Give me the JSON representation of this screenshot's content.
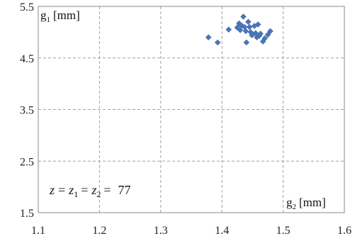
{
  "chart_data": {
    "type": "scatter",
    "xlim": [
      1.1,
      1.6
    ],
    "ylim": [
      1.5,
      5.5
    ],
    "x_ticks": [
      "1.1",
      "1.2",
      "1.3",
      "1.4",
      "1.5",
      "1.6"
    ],
    "y_ticks": [
      "1.5",
      "2.5",
      "3.5",
      "4.5",
      "5.5"
    ],
    "grid": true,
    "grid_style": "dashed",
    "marker": "diamond",
    "marker_color": "#4a76b9",
    "y_label": {
      "main": "g",
      "sub": "1",
      "unit": "[mm]"
    },
    "x_label": {
      "main": "g",
      "sub": "2",
      "unit": "[mm]"
    },
    "annotation": {
      "z": "z",
      "eq1": "=",
      "z1": "z",
      "z1_sub": "1",
      "eq2": "=",
      "z2": "z",
      "z2_sub": "2",
      "eq3": "=",
      "value": "77"
    },
    "points": [
      {
        "x": 1.378,
        "y": 4.9
      },
      {
        "x": 1.393,
        "y": 4.8
      },
      {
        "x": 1.411,
        "y": 5.05
      },
      {
        "x": 1.425,
        "y": 5.09
      },
      {
        "x": 1.428,
        "y": 5.17
      },
      {
        "x": 1.43,
        "y": 5.04
      },
      {
        "x": 1.432,
        "y": 5.13
      },
      {
        "x": 1.435,
        "y": 5.3
      },
      {
        "x": 1.437,
        "y": 5.1
      },
      {
        "x": 1.439,
        "y": 5.02
      },
      {
        "x": 1.44,
        "y": 4.8
      },
      {
        "x": 1.443,
        "y": 5.2
      },
      {
        "x": 1.445,
        "y": 5.1
      },
      {
        "x": 1.447,
        "y": 5.0
      },
      {
        "x": 1.449,
        "y": 4.94
      },
      {
        "x": 1.453,
        "y": 5.12
      },
      {
        "x": 1.455,
        "y": 4.98
      },
      {
        "x": 1.457,
        "y": 4.9
      },
      {
        "x": 1.459,
        "y": 5.15
      },
      {
        "x": 1.461,
        "y": 4.93
      },
      {
        "x": 1.463,
        "y": 4.97
      },
      {
        "x": 1.467,
        "y": 4.82
      },
      {
        "x": 1.47,
        "y": 4.88
      },
      {
        "x": 1.475,
        "y": 4.95
      },
      {
        "x": 1.479,
        "y": 5.02
      }
    ]
  }
}
